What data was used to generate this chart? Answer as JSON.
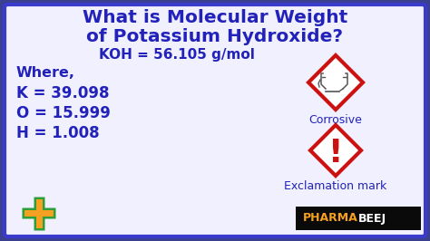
{
  "title_line1": "What is Molecular Weight",
  "title_line2": "of Potassium Hydroxide?",
  "formula_line": "KOH = 56.105 g/mol",
  "where_label": "Where,",
  "k_line": "K = 39.098",
  "o_line": "O = 15.999",
  "h_line": "H = 1.008",
  "corrosive_label": "Corrosive",
  "exclamation_label": "Exclamation mark",
  "bg_color": "#3a3f8f",
  "inner_bg": "#f0f0ff",
  "border_color": "#3a3acd",
  "title_color": "#2222bb",
  "body_color": "#2222bb",
  "diamond_color": "#cc1111",
  "diamond_fill": "#ffffff",
  "cross_orange": "#f5a020",
  "cross_green": "#2e9e3a",
  "pharma_bg": "#0a0a0a",
  "pharma_color": "#f5a020",
  "beej_color": "#ffffff",
  "label_color": "#2222bb",
  "figsize": [
    4.74,
    2.66
  ],
  "dpi": 100
}
